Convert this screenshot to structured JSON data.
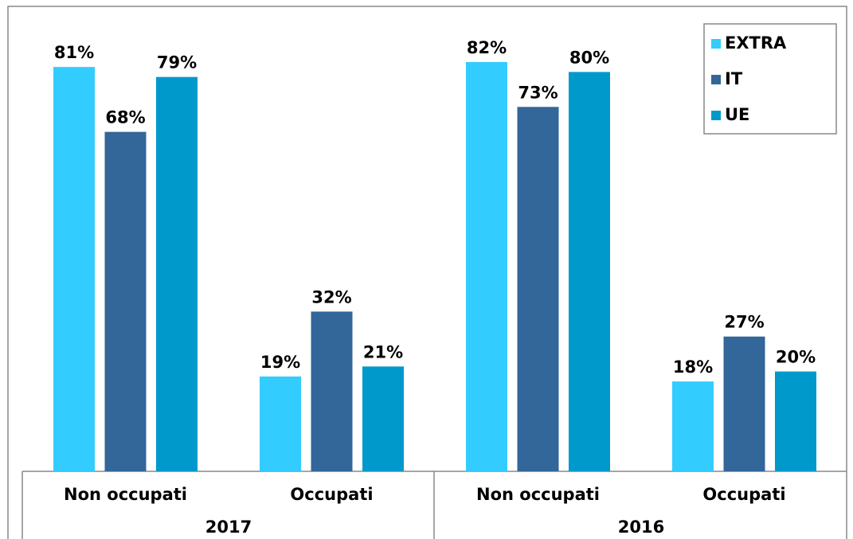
{
  "chart_data": {
    "type": "bar",
    "categories": [
      "Non occupati",
      "Occupati",
      "Non occupati",
      "Occupati"
    ],
    "category_groups": [
      "2017",
      "2016"
    ],
    "series": [
      {
        "name": "EXTRA",
        "color": "#33ccff",
        "values": [
          81,
          19,
          82,
          18
        ],
        "value_labels": [
          "81%",
          "19%",
          "82%",
          "18%"
        ]
      },
      {
        "name": "IT",
        "color": "#336699",
        "values": [
          68,
          32,
          73,
          27
        ],
        "value_labels": [
          "68%",
          "32%",
          "73%",
          "27%"
        ]
      },
      {
        "name": "UE",
        "color": "#0099cc",
        "values": [
          79,
          21,
          80,
          20
        ],
        "value_labels": [
          "79%",
          "21%",
          "80%",
          "20%"
        ]
      }
    ],
    "legend": "top-right"
  }
}
